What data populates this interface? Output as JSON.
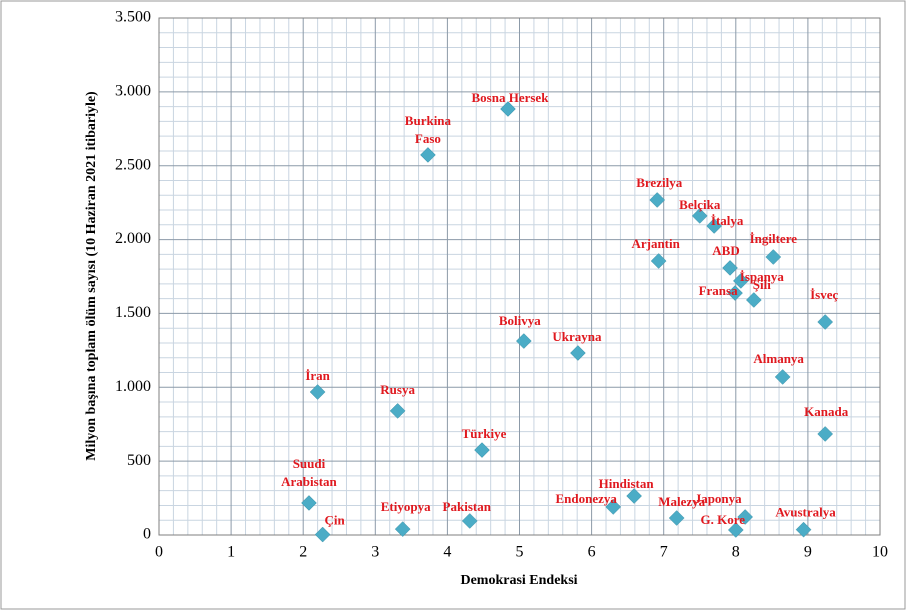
{
  "chart_data": {
    "type": "scatter",
    "x_label": "Demokrasi Endeksi",
    "y_label": "Milyon başına toplam ölüm sayısı (10 Haziran 2021 itibariyle)",
    "point_labels": [
      "İran",
      "Rusya",
      "Suudi Arabistan",
      "Çin",
      "Etiyopya",
      "Pakistan",
      "Türkiye",
      "Burkina Faso",
      "Bosna Hersek",
      "Bolivya",
      "Ukrayna",
      "Endonezya",
      "Hindistan",
      "Malezya",
      "Brezilya",
      "Arjantin",
      "Belçika",
      "İtalya",
      "ABD",
      "İngiltere",
      "İspanya",
      "Fransa",
      "Şili",
      "İsveç",
      "Almanya",
      "Kanada",
      "Japonya",
      "G. Kore",
      "Avustralya"
    ],
    "x": [
      2.2,
      3.31,
      2.08,
      2.27,
      3.38,
      4.31,
      4.48,
      3.73,
      4.84,
      5.06,
      5.81,
      6.3,
      6.59,
      7.18,
      6.91,
      6.93,
      7.5,
      7.7,
      7.92,
      8.52,
      8.07,
      7.99,
      8.25,
      9.24,
      8.65,
      9.24,
      8.13,
      8.0,
      8.94
    ],
    "series": [
      {
        "color": "#4bacc6",
        "values": [
          968,
          840,
          217,
          3,
          40,
          95,
          575,
          2573,
          2884,
          1313,
          1232,
          190,
          264,
          115,
          2268,
          1855,
          2160,
          2092,
          1808,
          1882,
          1720,
          1638,
          1591,
          1442,
          1070,
          684,
          122,
          34,
          36
        ]
      }
    ],
    "label_color": "#e0191f",
    "xlim": [
      0,
      10
    ],
    "xticks": [
      0,
      1,
      2,
      3,
      4,
      5,
      6,
      7,
      8,
      9,
      10
    ],
    "ylim": [
      0,
      3500
    ],
    "yticks": [
      0,
      500,
      {
        "value": 1000,
        "label": "1.000"
      },
      {
        "value": 1500,
        "label": "1.500"
      },
      {
        "value": 2000,
        "label": "2.000"
      },
      {
        "value": 2500,
        "label": "2.500"
      },
      {
        "value": 3000,
        "label": "3.000"
      },
      {
        "value": 3500,
        "label": "3.500"
      }
    ],
    "grid": true
  }
}
